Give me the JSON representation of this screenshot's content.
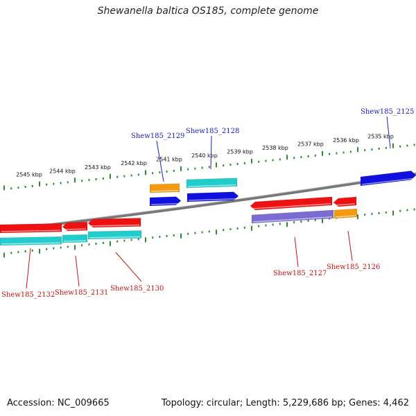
{
  "title": "Shewanella baltica OS185, complete genome",
  "footer": {
    "accession": "Accession: NC_009665",
    "topology": "Topology: circular; Length: 5,229,686 bp; Genes: 4,462"
  },
  "colors": {
    "backbone": "#8a8a8a",
    "tick": "#2e8b2e",
    "forward_label": "#1a1acc",
    "reverse_label": "#cc1111",
    "red": "#ee1111",
    "blue": "#1111dd",
    "teal": "#22cccc",
    "orange": "#f39a10",
    "purple": "#7a6cd0"
  },
  "scale_labels": [
    "2545 kbp",
    "2544 kbp",
    "2543 kbp",
    "2542 kbp",
    "2541 kbp",
    "2540 kbp",
    "2539 kbp",
    "2538 kbp",
    "2537 kbp",
    "2536 kbp",
    "2535 kbp"
  ],
  "gene_labels": [
    {
      "id": "g2125",
      "text": "Shew185_2125",
      "strand": "forward"
    },
    {
      "id": "g2129",
      "text": "Shew185_2129",
      "strand": "forward"
    },
    {
      "id": "g2128",
      "text": "Shew185_2128",
      "strand": "forward"
    },
    {
      "id": "g2132",
      "text": "Shew185_2132",
      "strand": "reverse"
    },
    {
      "id": "g2131",
      "text": "Shew185_2131",
      "strand": "reverse"
    },
    {
      "id": "g2130",
      "text": "Shew185_2130",
      "strand": "reverse"
    },
    {
      "id": "g2127",
      "text": "Shew185_2127",
      "strand": "reverse"
    },
    {
      "id": "g2126",
      "text": "Shew185_2126",
      "strand": "reverse"
    }
  ],
  "features": [
    {
      "id": "f2125",
      "strand": "forward",
      "color": "blue",
      "dir": "right"
    },
    {
      "id": "f2129a",
      "strand": "forward",
      "color": "orange",
      "dir": "none"
    },
    {
      "id": "f2129b",
      "strand": "forward",
      "color": "blue",
      "dir": "right"
    },
    {
      "id": "f2128a",
      "strand": "forward",
      "color": "teal",
      "dir": "none"
    },
    {
      "id": "f2128b",
      "strand": "forward",
      "color": "blue",
      "dir": "right"
    },
    {
      "id": "f2132a",
      "strand": "reverse",
      "color": "red",
      "dir": "none"
    },
    {
      "id": "f2131a",
      "strand": "reverse",
      "color": "red",
      "dir": "left"
    },
    {
      "id": "f2130a",
      "strand": "reverse",
      "color": "red",
      "dir": "left"
    },
    {
      "id": "f2132b",
      "strand": "reverse",
      "color": "teal",
      "dir": "none"
    },
    {
      "id": "f2131b",
      "strand": "reverse",
      "color": "teal",
      "dir": "none"
    },
    {
      "id": "f2130b",
      "strand": "reverse",
      "color": "teal",
      "dir": "none"
    },
    {
      "id": "f2127a",
      "strand": "reverse",
      "color": "red",
      "dir": "left"
    },
    {
      "id": "f2126a",
      "strand": "reverse",
      "color": "red",
      "dir": "left"
    },
    {
      "id": "f2127b",
      "strand": "reverse",
      "color": "purple",
      "dir": "none"
    },
    {
      "id": "f2126b",
      "strand": "reverse",
      "color": "orange",
      "dir": "none"
    }
  ]
}
